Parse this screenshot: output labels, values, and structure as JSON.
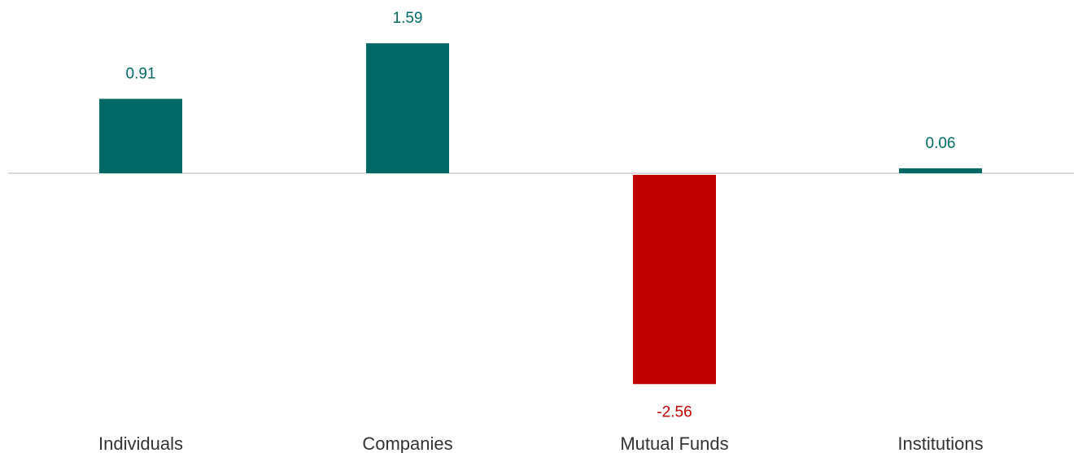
{
  "chart_data": {
    "type": "bar",
    "categories": [
      "Individuals",
      "Companies",
      "Mutual Funds",
      "Institutions"
    ],
    "values": [
      0.91,
      1.59,
      -2.56,
      0.06
    ],
    "value_labels": [
      "0.91",
      "1.59",
      "-2.56",
      "0.06"
    ],
    "title": "",
    "xlabel": "",
    "ylabel": "",
    "grid": false,
    "legend": "none",
    "colors": {
      "positive": "#006966",
      "negative": "#C00000",
      "baseline": "#d9d9d9",
      "category_text": "#333333"
    }
  }
}
